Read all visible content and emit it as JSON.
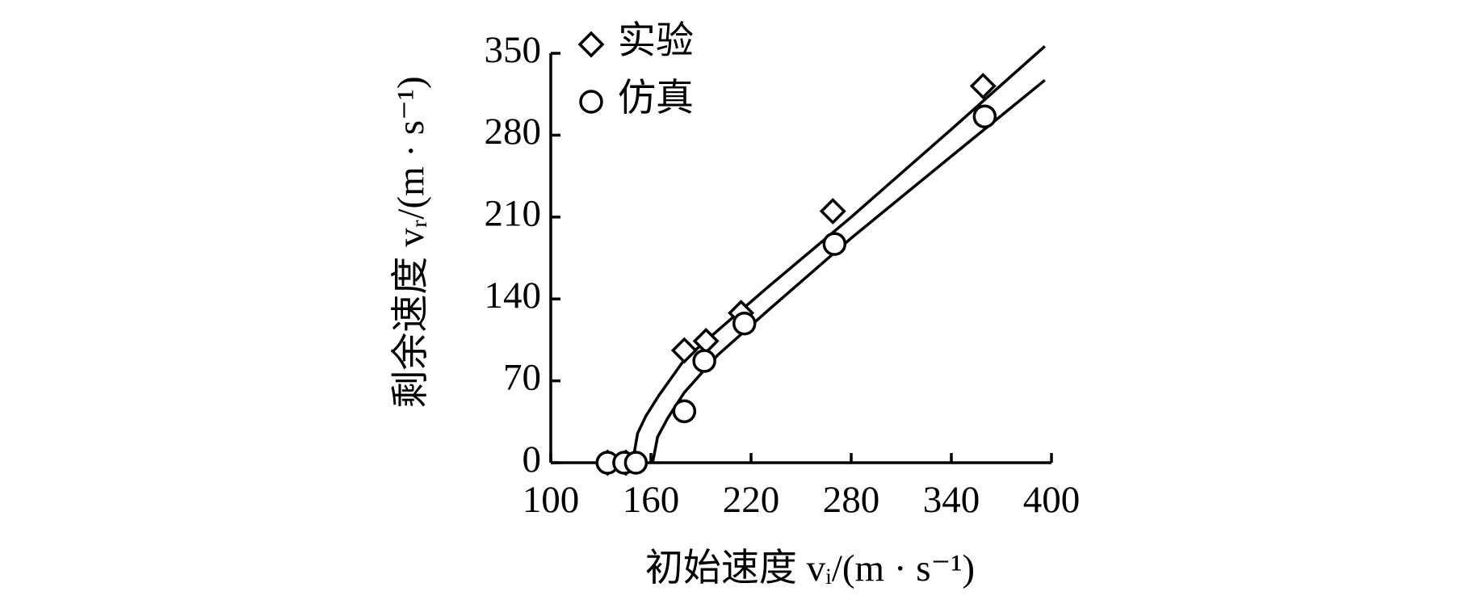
{
  "chart_data": {
    "type": "scatter",
    "xlabel": "初始速度 vᵢ/(m · s⁻¹)",
    "ylabel": "剩余速度 vᵣ/(m · s⁻¹)",
    "xlim": [
      100,
      400
    ],
    "xticks": [
      100,
      160,
      220,
      280,
      340,
      400
    ],
    "ylim": [
      0,
      350
    ],
    "yticks": [
      0,
      70,
      140,
      210,
      280,
      350
    ],
    "legend": "upper left",
    "series": [
      {
        "name": "实验",
        "marker": "diamond",
        "color": "#000000",
        "x": [
          134,
          145,
          180,
          193,
          214,
          269,
          359
        ],
        "values": [
          0,
          0,
          96,
          104,
          128,
          215,
          322
        ]
      },
      {
        "name": "仿真",
        "marker": "circle",
        "color": "#000000",
        "x": [
          134,
          144,
          151,
          180,
          192,
          216,
          270,
          360
        ],
        "values": [
          0,
          0,
          0,
          44,
          87,
          119,
          187,
          296
        ]
      }
    ],
    "lines": [
      {
        "x": [
          149,
          152,
          157,
          165,
          180,
          200,
          230,
          280,
          340,
          396
        ],
        "values": [
          0,
          25,
          40,
          58,
          88,
          113,
          150,
          210,
          285,
          356
        ]
      },
      {
        "x": [
          161,
          164,
          170,
          180,
          200,
          230,
          280,
          340,
          396
        ],
        "values": [
          0,
          22,
          38,
          60,
          92,
          130,
          192,
          262,
          327
        ]
      }
    ]
  }
}
